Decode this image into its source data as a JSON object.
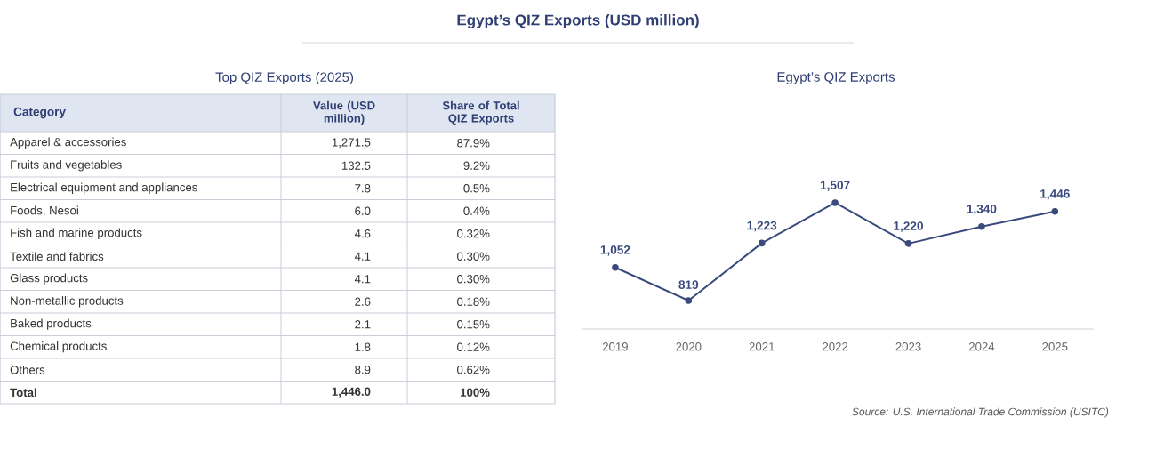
{
  "chart_data": [
    {
      "type": "other",
      "title": "Egypt’s QIZ Exports (USD million)"
    },
    {
      "type": "other",
      "title": "Top QIZ Exports (2025)",
      "annotations": [
        "Category",
        "Value (USD million)",
        "Share of Total QIZ Exports",
        "Apparel & accessories",
        "1,271.5",
        "87.9%",
        "Fruits and vegetables",
        "132.5",
        "9.2%",
        "Electrical equipment and appliances",
        "7.8",
        "0.5%",
        "Foods, Nesoi",
        "6.0",
        "0.4%",
        "Fish and marine products",
        "4.6",
        "0.32%",
        "Textile and fabrics",
        "4.1",
        "0.30%",
        "Glass products",
        "4.1",
        "0.30%",
        "Non-metallic products",
        "2.6",
        "0.18%",
        "Baked products",
        "2.1",
        "0.15%",
        "Chemical products",
        "1.8",
        "0.12%",
        "Others",
        "8.9",
        "0.62%",
        "Total",
        "1,446.0",
        "100%"
      ]
    },
    {
      "type": "line",
      "title": "Egypt’s QIZ Exports",
      "categories": [
        "2019",
        "2020",
        "2021",
        "2022",
        "2023",
        "2024",
        "2025"
      ],
      "values": [
        1052,
        819,
        1223,
        1507,
        1220,
        1340,
        1446
      ],
      "value_labels": [
        "1,052",
        "819",
        "1,223",
        "1,507",
        "1,220",
        "1,340",
        "1,446"
      ],
      "color": "#3b4a7d",
      "marker": "circle",
      "tick_labels": "x",
      "annotations": [
        "Source: U.S. International Trade Commission (USITC)"
      ]
    }
  ]
}
